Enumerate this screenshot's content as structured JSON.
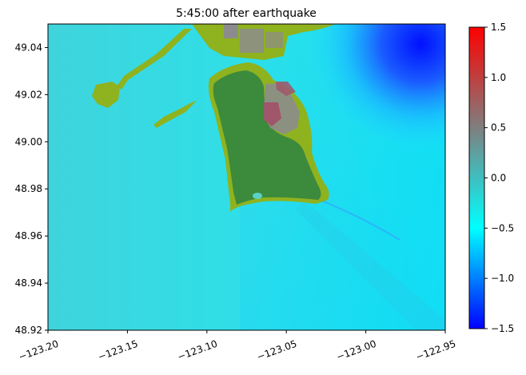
{
  "chart_data": {
    "type": "heatmap",
    "title": "5:45:00 after earthquake",
    "xlabel": "",
    "ylabel": "",
    "xlim": [
      -123.2,
      -122.95
    ],
    "ylim": [
      48.92,
      49.05
    ],
    "x_ticks": [
      -123.2,
      -123.15,
      -123.1,
      -123.05,
      -123.0,
      -122.95
    ],
    "x_tick_labels": [
      "−123.20",
      "−123.15",
      "−123.10",
      "−123.05",
      "−123.00",
      "−122.95"
    ],
    "y_ticks": [
      48.92,
      48.94,
      48.96,
      48.98,
      49.0,
      49.02,
      49.04
    ],
    "y_tick_labels": [
      "48.92",
      "48.94",
      "48.96",
      "48.98",
      "49.00",
      "49.02",
      "49.04"
    ],
    "colorbar": {
      "vmin": -1.5,
      "vmax": 1.5,
      "ticks": [
        -1.5,
        -1.0,
        -0.5,
        0.0,
        0.5,
        1.0,
        1.5
      ],
      "tick_labels": [
        "−1.5",
        "−1.0",
        "−0.5",
        "0.0",
        "0.5",
        "1.0",
        "1.5"
      ],
      "colors": [
        "#0000ff",
        "#00ffff",
        "#7f7f7f",
        "#ff0000"
      ]
    },
    "land_colors": {
      "dry": "#8fb21f",
      "wet": "#3c8a3c",
      "urban": "#8c8c8c",
      "raised": "#a0566a"
    },
    "grid": false
  }
}
